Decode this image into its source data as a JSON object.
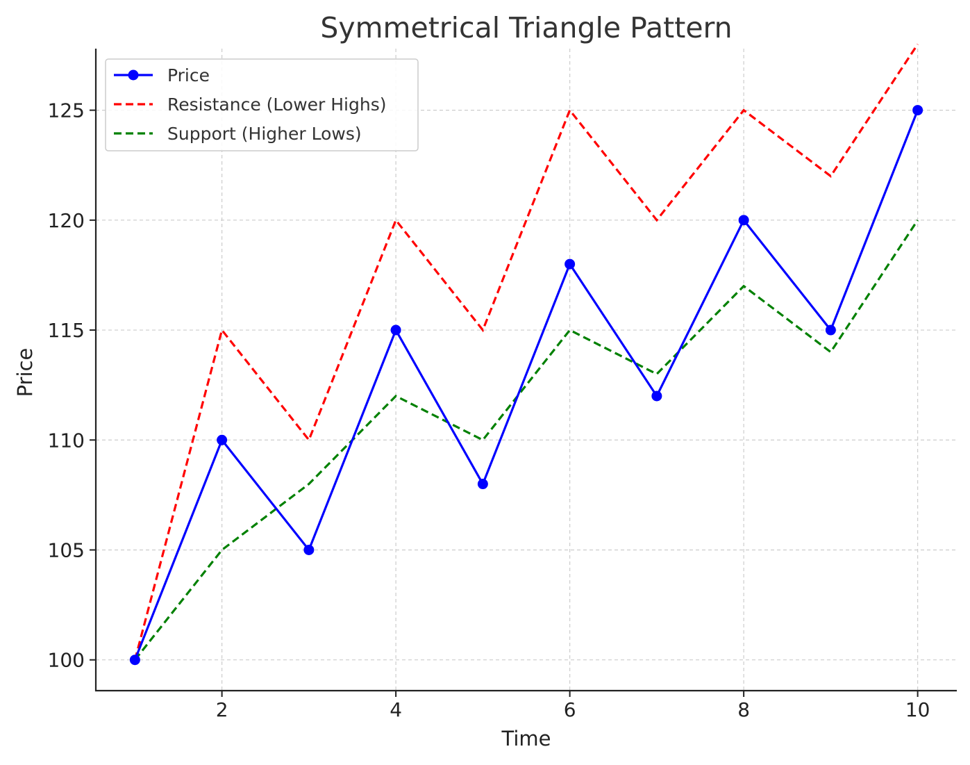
{
  "chart_data": {
    "type": "line",
    "title": "Symmetrical Triangle Pattern",
    "xlabel": "Time",
    "ylabel": "Price",
    "x": [
      1,
      2,
      3,
      4,
      5,
      6,
      7,
      8,
      9,
      10
    ],
    "xlim": [
      0.55,
      10.45
    ],
    "ylim": [
      98.6,
      127.8
    ],
    "xticks": [
      2,
      4,
      6,
      8,
      10
    ],
    "yticks": [
      100,
      105,
      110,
      115,
      120,
      125
    ],
    "grid": true,
    "legend_position": "top-left",
    "series": [
      {
        "name": "Price",
        "values": [
          100,
          110,
          105,
          115,
          108,
          118,
          112,
          120,
          115,
          125
        ],
        "color": "#0000ff",
        "style": "solid",
        "marker": "circle"
      },
      {
        "name": "Resistance (Lower Highs)",
        "values": [
          100,
          115,
          110,
          120,
          115,
          125,
          120,
          125,
          122,
          128
        ],
        "color": "#ff0000",
        "style": "dashed",
        "marker": "none"
      },
      {
        "name": "Support (Higher Lows)",
        "values": [
          100,
          105,
          108,
          112,
          110,
          115,
          113,
          117,
          114,
          120
        ],
        "color": "#008000",
        "style": "dashed",
        "marker": "none"
      }
    ]
  }
}
